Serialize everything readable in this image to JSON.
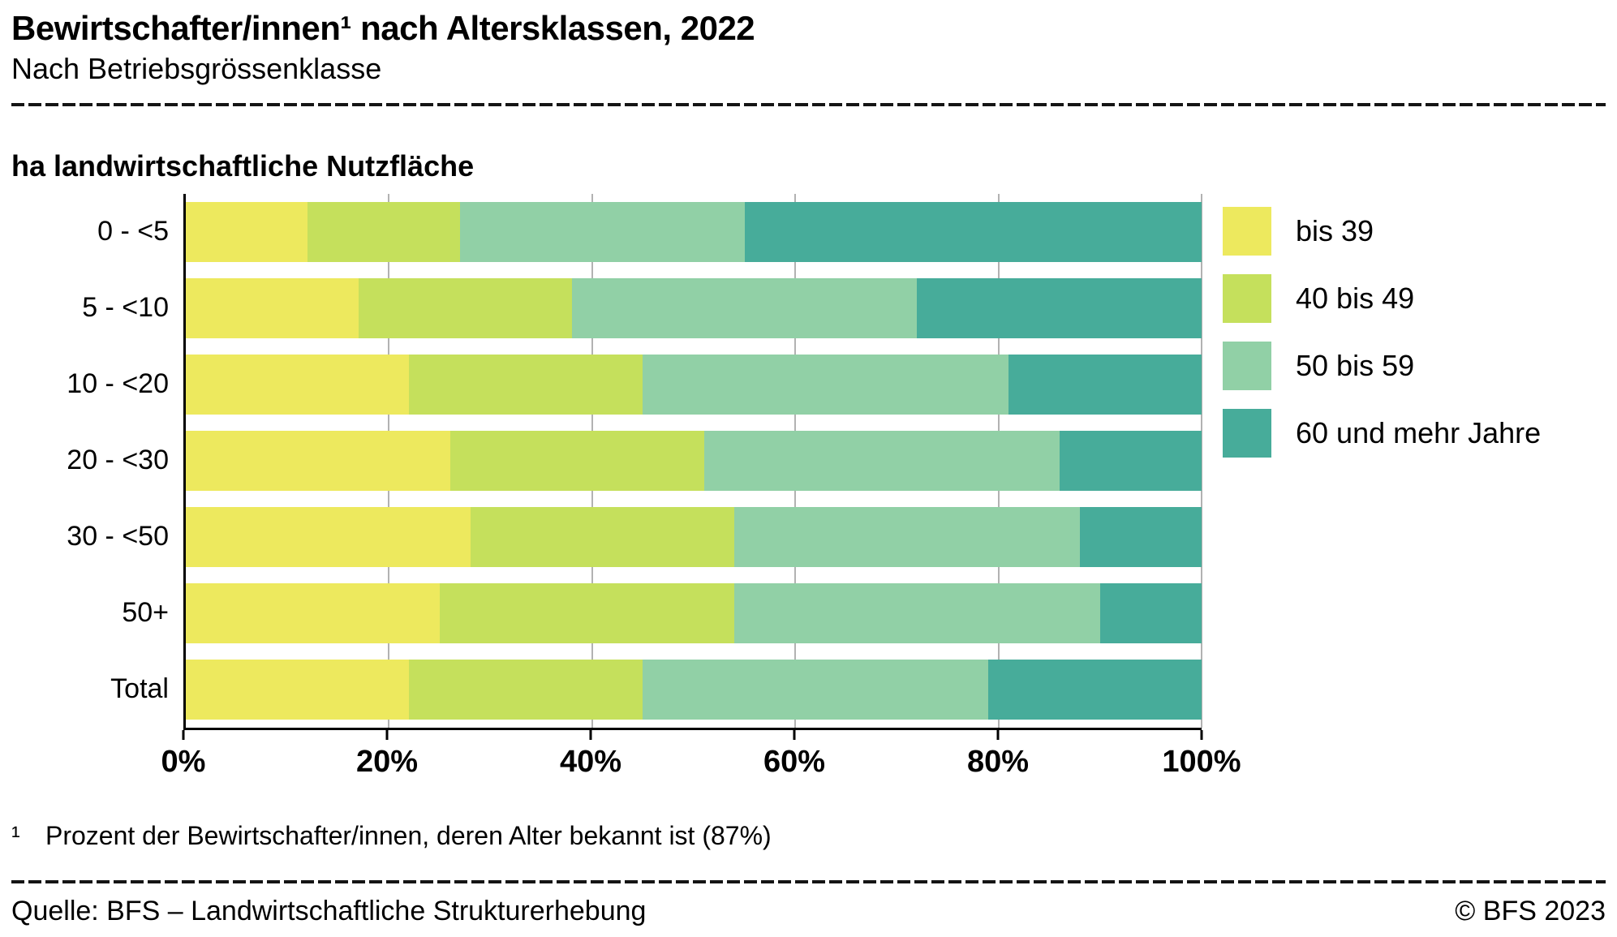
{
  "header": {
    "title": "Bewirtschafter/innen¹ nach Altersklassen, 2022",
    "subtitle": "Nach Betriebsgrössenklasse"
  },
  "chart_data": {
    "type": "bar",
    "stacked": true,
    "orientation": "horizontal",
    "title": "Bewirtschafter/innen nach Altersklassen, 2022",
    "ylabel": "ha landwirtschaftliche Nutzfläche",
    "xlabel": "",
    "categories": [
      "0 - <5",
      "5 - <10",
      "10 - <20",
      "20 - <30",
      "30 - <50",
      "50+",
      "Total"
    ],
    "series": [
      {
        "name": "bis 39",
        "color": "#ede95e",
        "values": [
          12,
          17,
          22,
          26,
          28,
          25,
          22
        ]
      },
      {
        "name": "40 bis 49",
        "color": "#c5e05c",
        "values": [
          15,
          21,
          23,
          25,
          26,
          29,
          23
        ]
      },
      {
        "name": "50 bis 59",
        "color": "#91d0a6",
        "values": [
          28,
          34,
          36,
          35,
          34,
          36,
          34
        ]
      },
      {
        "name": "60 und mehr Jahre",
        "color": "#47ac9a",
        "values": [
          45,
          28,
          19,
          14,
          12,
          10,
          21
        ]
      }
    ],
    "x_ticks": [
      "0%",
      "20%",
      "40%",
      "60%",
      "80%",
      "100%"
    ],
    "xlim": [
      0,
      100
    ],
    "grid": true,
    "gridline_color": "#b2b2b2",
    "legend_position": "right"
  },
  "footnote": {
    "marker": "¹",
    "text": "Prozent der Bewirtschafter/innen, deren Alter bekannt ist (87%)"
  },
  "footer": {
    "source": "Quelle: BFS – Landwirtschaftliche Strukturerhebung",
    "copyright": "© BFS 2023"
  }
}
